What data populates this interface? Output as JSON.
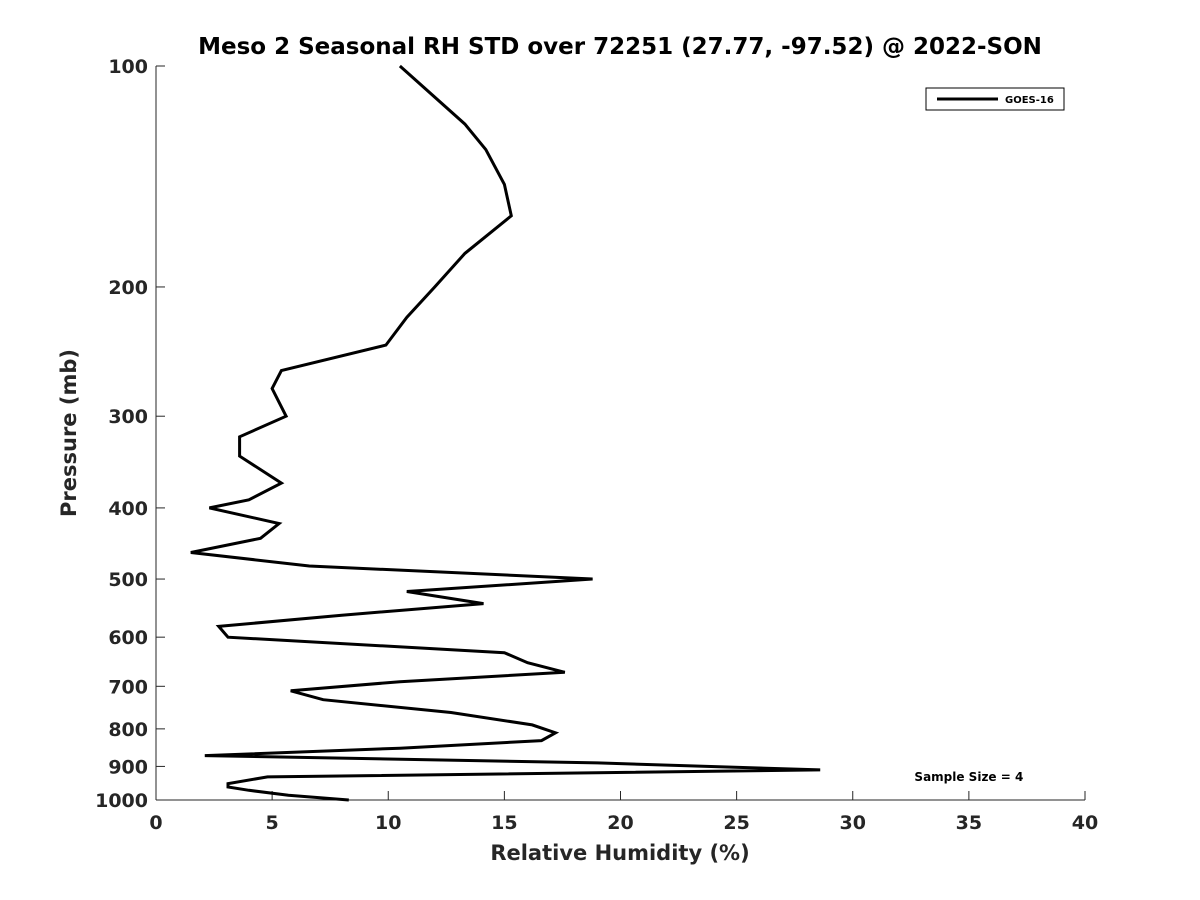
{
  "chart_data": {
    "type": "line",
    "title": "Meso 2 Seasonal RH STD over 72251 (27.77, -97.52) @ 2022-SON",
    "xlabel": "Relative Humidity (%)",
    "ylabel": "Pressure (mb)",
    "xlim": [
      0,
      40
    ],
    "ylim": [
      100,
      1000
    ],
    "y_scale": "log",
    "y_reversed": true,
    "x_ticks": [
      0,
      5,
      10,
      15,
      20,
      25,
      30,
      35,
      40
    ],
    "x_tick_labels": [
      "0",
      "5",
      "10",
      "15",
      "20",
      "25",
      "30",
      "35",
      "40"
    ],
    "y_ticks": [
      100,
      200,
      300,
      400,
      500,
      600,
      700,
      800,
      900,
      1000
    ],
    "y_tick_labels": [
      "100",
      "200",
      "300",
      "400",
      "500",
      "600",
      "700",
      "800",
      "900",
      "1000"
    ],
    "grid": false,
    "legend_position": "top-right",
    "series": [
      {
        "name": "GOES-16",
        "color": "#000000",
        "x": [
          10.5,
          13.3,
          14.2,
          15.0,
          15.3,
          13.3,
          12.0,
          10.8,
          9.9,
          5.4,
          5.0,
          5.6,
          3.6,
          3.6,
          5.4,
          4.0,
          2.3,
          5.3,
          4.5,
          1.5,
          6.6,
          18.8,
          10.8,
          14.1,
          8.0,
          2.7,
          3.1,
          15.0,
          16.0,
          17.6,
          10.5,
          5.8,
          7.2,
          12.7,
          16.2,
          17.2,
          16.6,
          10.5,
          2.1,
          19.0,
          28.6,
          4.8,
          3.1,
          3.1,
          4.0,
          5.7,
          8.3
        ],
        "y": [
          100,
          120,
          130,
          145,
          160,
          180,
          200,
          220,
          240,
          260,
          275,
          300,
          320,
          340,
          370,
          390,
          400,
          420,
          440,
          460,
          480,
          500,
          520,
          540,
          560,
          580,
          600,
          630,
          650,
          670,
          690,
          710,
          730,
          760,
          790,
          810,
          830,
          850,
          870,
          890,
          910,
          930,
          950,
          960,
          970,
          985,
          1000
        ]
      }
    ],
    "annotations": [
      {
        "text": "Sample Size = 4",
        "x": 35,
        "y": 930
      }
    ]
  }
}
